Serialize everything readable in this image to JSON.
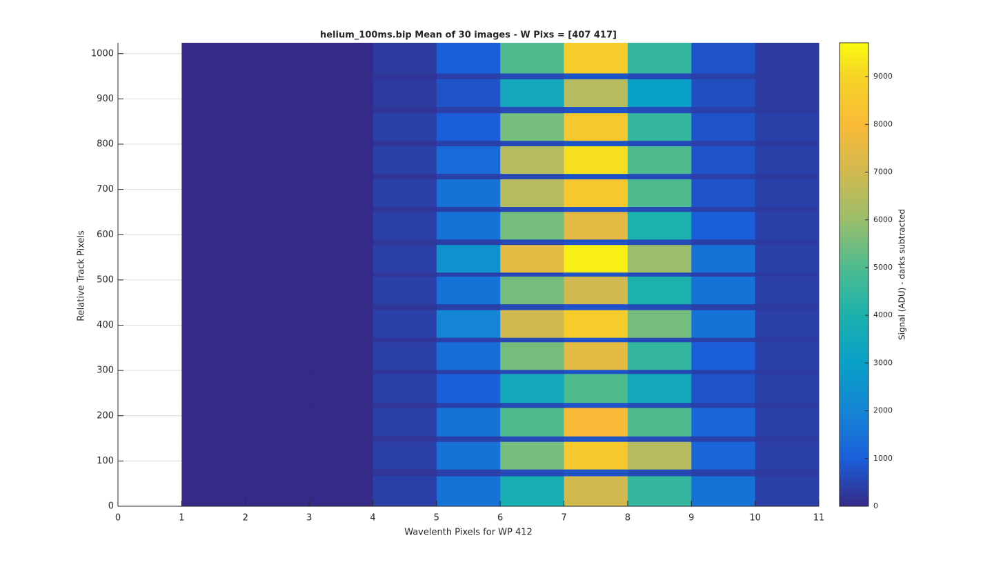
{
  "chart_data": {
    "type": "heatmap",
    "title": "helium_100ms.bip  Mean of 30 images - W Pixs = [407  417]",
    "xlabel": "Wavelenth Pixels for WP 412",
    "ylabel": "Relative Track Pixels",
    "colorbar_label": "Signal (ADU) - darks subtracted",
    "xbins": [
      1,
      2,
      3,
      4,
      5,
      6,
      7,
      8,
      9,
      10,
      11
    ],
    "ybins": [
      0,
      67,
      82,
      143,
      155,
      218,
      229,
      293,
      302,
      363,
      373,
      434,
      447,
      508,
      517,
      578,
      590,
      651,
      662,
      723,
      735,
      796,
      808,
      869,
      883,
      944,
      957,
      1024
    ],
    "z": [
      [
        0,
        0,
        0,
        400,
        1500,
        3800,
        7000,
        4500,
        1500,
        400
      ],
      [
        0,
        0,
        0,
        200,
        400,
        600,
        800,
        600,
        400,
        300
      ],
      [
        0,
        0,
        0,
        400,
        1500,
        5500,
        8500,
        6500,
        1200,
        400
      ],
      [
        0,
        0,
        0,
        200,
        400,
        600,
        800,
        600,
        400,
        300
      ],
      [
        0,
        0,
        0,
        400,
        1500,
        5000,
        8000,
        5000,
        1200,
        400
      ],
      [
        0,
        0,
        0,
        200,
        400,
        600,
        800,
        600,
        400,
        300
      ],
      [
        0,
        0,
        0,
        400,
        1000,
        3500,
        5000,
        3500,
        800,
        400
      ],
      [
        0,
        0,
        0,
        200,
        400,
        600,
        800,
        600,
        400,
        300
      ],
      [
        0,
        0,
        0,
        400,
        1400,
        5500,
        7500,
        4500,
        1000,
        400
      ],
      [
        0,
        0,
        0,
        200,
        400,
        600,
        800,
        600,
        400,
        300
      ],
      [
        0,
        0,
        0,
        400,
        2000,
        7000,
        8700,
        5500,
        1500,
        400
      ],
      [
        0,
        0,
        0,
        200,
        400,
        600,
        800,
        600,
        400,
        300
      ],
      [
        0,
        0,
        0,
        400,
        1500,
        5500,
        7000,
        4000,
        1500,
        400
      ],
      [
        0,
        0,
        0,
        200,
        400,
        600,
        800,
        600,
        400,
        300
      ],
      [
        0,
        0,
        0,
        400,
        2500,
        7500,
        9500,
        6000,
        1500,
        400
      ],
      [
        0,
        0,
        0,
        200,
        400,
        600,
        800,
        600,
        400,
        300
      ],
      [
        0,
        0,
        0,
        400,
        1500,
        5500,
        7500,
        4000,
        1000,
        400
      ],
      [
        0,
        0,
        0,
        200,
        400,
        600,
        800,
        600,
        400,
        300
      ],
      [
        0,
        0,
        0,
        400,
        1500,
        6500,
        8500,
        5000,
        800,
        400
      ],
      [
        0,
        0,
        0,
        200,
        400,
        600,
        800,
        600,
        400,
        300
      ],
      [
        0,
        0,
        0,
        400,
        1300,
        6500,
        9200,
        5000,
        800,
        400
      ],
      [
        0,
        0,
        0,
        200,
        400,
        600,
        800,
        600,
        400,
        300
      ],
      [
        0,
        0,
        0,
        400,
        1000,
        5500,
        8500,
        4500,
        800,
        400
      ],
      [
        0,
        0,
        0,
        200,
        400,
        600,
        800,
        600,
        400,
        300
      ],
      [
        0,
        0,
        0,
        300,
        800,
        3500,
        6500,
        3000,
        700,
        300
      ],
      [
        0,
        0,
        0,
        200,
        400,
        600,
        800,
        600,
        400,
        300
      ],
      [
        0,
        0,
        0,
        300,
        1000,
        5000,
        8700,
        4500,
        800,
        300
      ]
    ],
    "xlim": [
      0,
      11
    ],
    "xticks": [
      0,
      1,
      2,
      3,
      4,
      5,
      6,
      7,
      8,
      9,
      10,
      11
    ],
    "ylim": [
      0,
      1024
    ],
    "yticks": [
      0,
      100,
      200,
      300,
      400,
      500,
      600,
      700,
      800,
      900,
      1000
    ],
    "clim": [
      0,
      9710
    ],
    "cticks": [
      0,
      1000,
      2000,
      3000,
      4000,
      5000,
      6000,
      7000,
      8000,
      9000
    ],
    "colormap": "parula",
    "grid": true
  }
}
